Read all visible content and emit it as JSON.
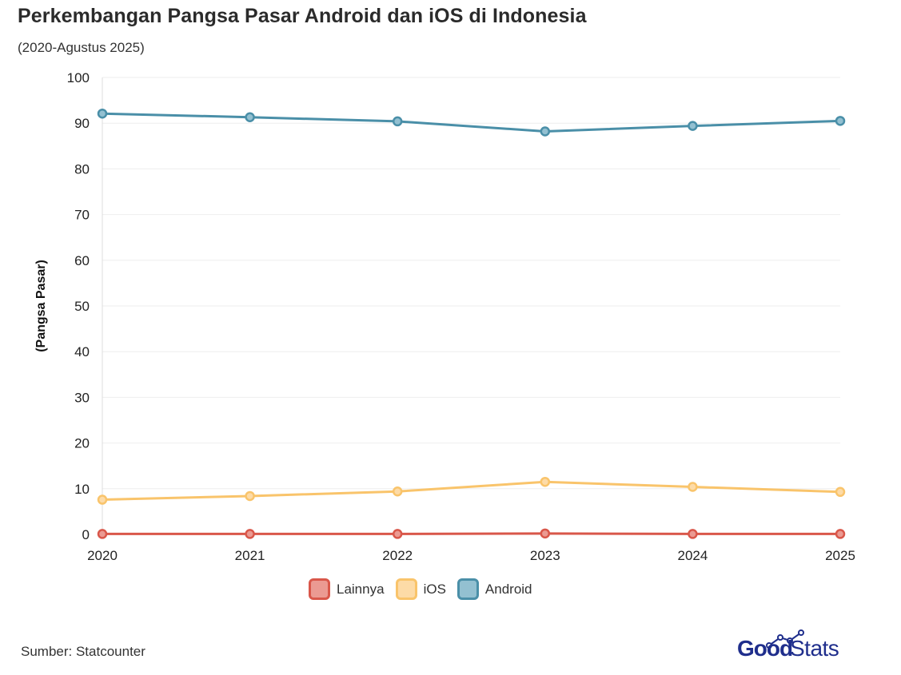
{
  "header": {
    "title": "Perkembangan Pangsa Pasar Android dan iOS di Indonesia",
    "subtitle": "(2020-Agustus 2025)"
  },
  "footer": {
    "source": "Sumber: Statcounter",
    "logo_good": "Good",
    "logo_stats": "Stats"
  },
  "colors": {
    "android": "#4a8fa8",
    "ios": "#f9c46b",
    "lainnya": "#d9574a",
    "grid": "#eeeeee",
    "logo": "#1f2e8c"
  },
  "chart_data": {
    "type": "line",
    "x": [
      "2020",
      "2021",
      "2022",
      "2023",
      "2024",
      "2025"
    ],
    "ylabel": "(Pangsa Pasar)",
    "ylim": [
      0,
      100
    ],
    "yticks": [
      0,
      10,
      20,
      30,
      40,
      50,
      60,
      70,
      80,
      90,
      100
    ],
    "grid": true,
    "legend_position": "bottom-center",
    "series": [
      {
        "name": "Lainnya",
        "color": "#d9574a",
        "fill": "#eb9a92",
        "values": [
          0.1,
          0.1,
          0.1,
          0.2,
          0.1,
          0.1
        ]
      },
      {
        "name": "iOS",
        "color": "#f9c46b",
        "fill": "#fddba7",
        "values": [
          7.6,
          8.4,
          9.4,
          11.5,
          10.4,
          9.3
        ]
      },
      {
        "name": "Android",
        "color": "#4a8fa8",
        "fill": "#93c0d1",
        "values": [
          92.1,
          91.3,
          90.4,
          88.2,
          89.4,
          90.5
        ]
      }
    ]
  }
}
